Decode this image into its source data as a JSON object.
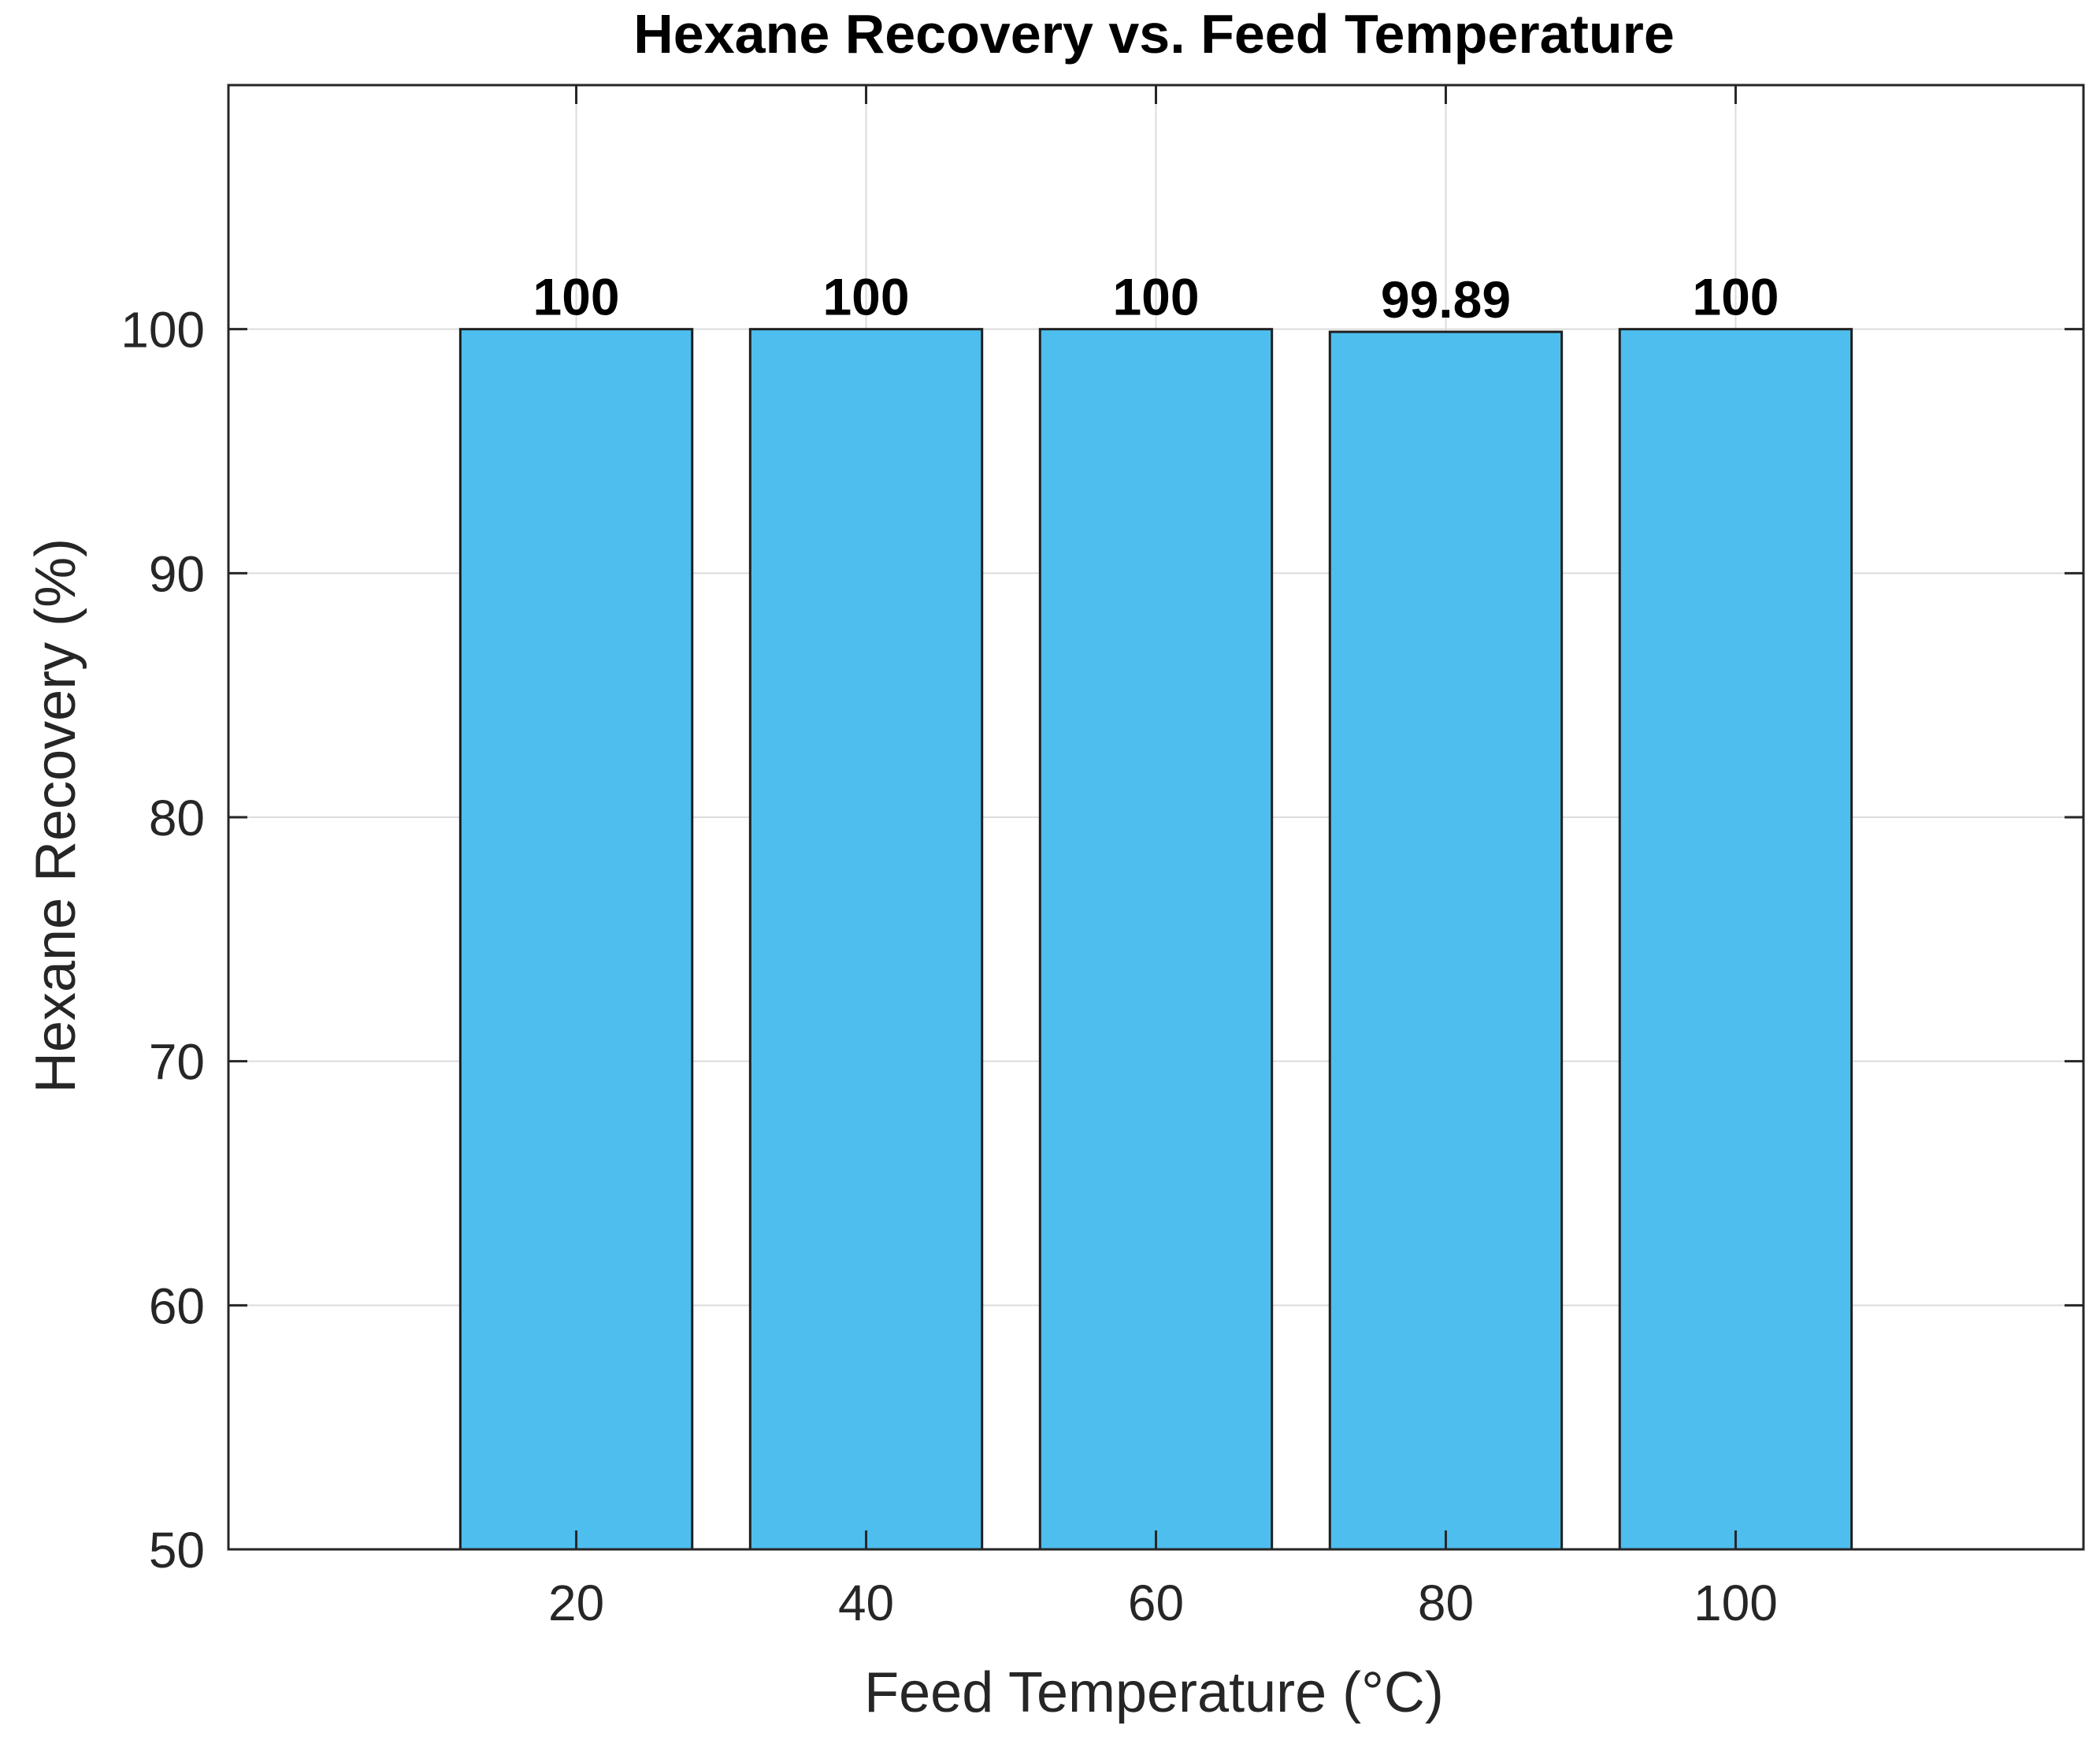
{
  "chart_data": {
    "type": "bar",
    "title": "Hexane Recovery vs. Feed Temperature",
    "xlabel": "Feed Temperature (°C)",
    "ylabel": "Hexane Recovery (%)",
    "categories": [
      "20",
      "40",
      "60",
      "80",
      "100"
    ],
    "x": [
      20,
      40,
      60,
      80,
      100
    ],
    "values": [
      100,
      100,
      100,
      99.89,
      100
    ],
    "data_labels": [
      "100",
      "100",
      "100",
      "99.89",
      "100"
    ],
    "xlim": [
      -4,
      124
    ],
    "ylim": [
      50,
      110
    ],
    "yticks": [
      50,
      60,
      70,
      80,
      90,
      100
    ],
    "ytick_labels": [
      "50",
      "60",
      "70",
      "80",
      "90",
      "100"
    ],
    "grid": true,
    "legend": "none",
    "colors": {
      "bar_fill": "#4EBEEE",
      "bar_edge": "#1f1f1f",
      "grid": "#dcdcdc",
      "axis": "#262626",
      "tick_text": "#262626",
      "label_text": "#000000"
    }
  }
}
